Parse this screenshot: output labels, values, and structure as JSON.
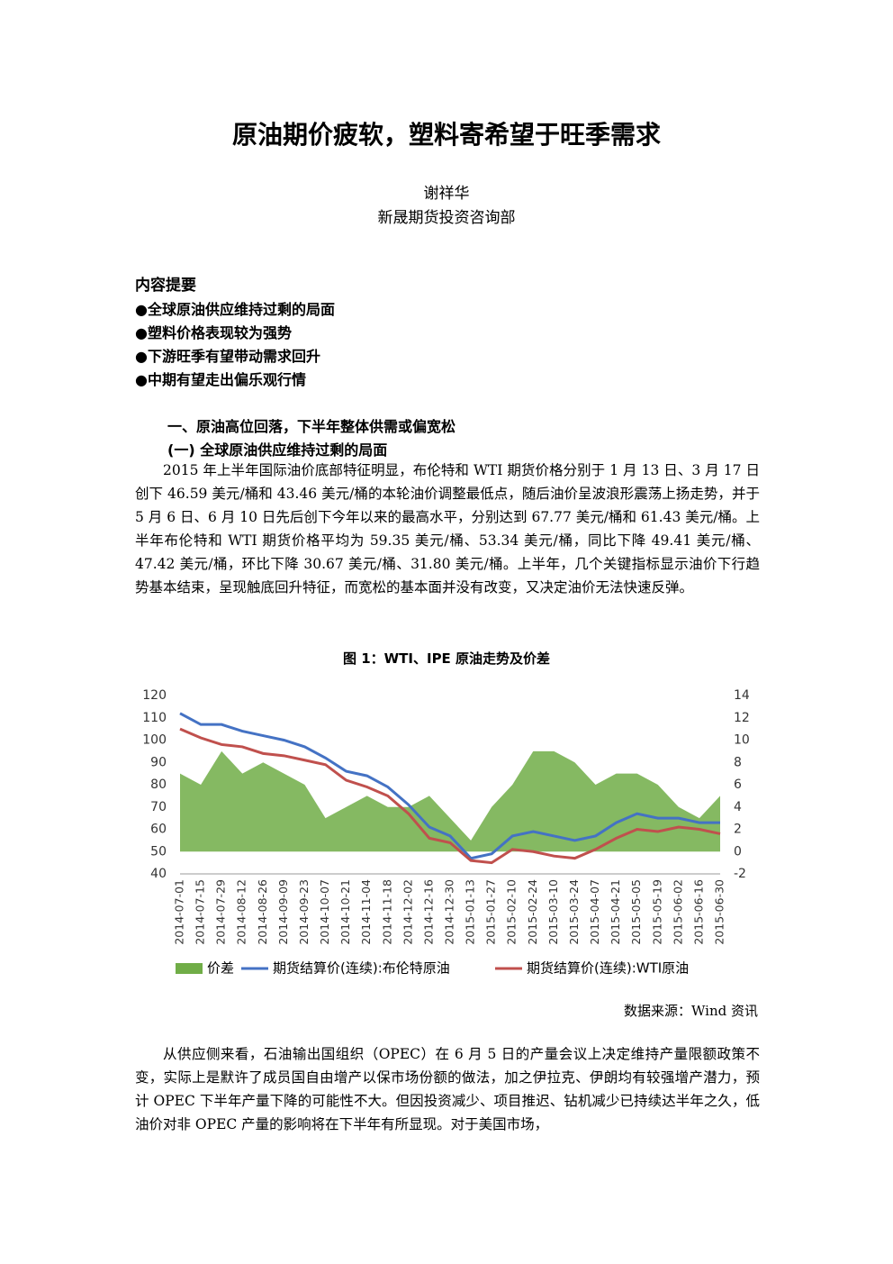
{
  "header": {
    "title": "原油期价疲软，塑料寄希望于旺季需求",
    "author": "谢祥华",
    "organization": "新晟期货投资咨询部"
  },
  "summary": {
    "heading": "内容提要",
    "items": [
      "●全球原油供应维持过剩的局面",
      "●塑料价格表现较为强势",
      "●下游旺季有望带动需求回升",
      "●中期有望走出偏乐观行情"
    ]
  },
  "section": {
    "heading": "一、原油高位回落，下半年整体供需或偏宽松",
    "subheading": "(一) 全球原油供应维持过剩的局面"
  },
  "paragraphs": [
    "2015 年上半年国际油价底部特征明显，布伦特和 WTI 期货价格分别于 1 月 13 日、3 月 17 日创下 46.59 美元/桶和 43.46 美元/桶的本轮油价调整最低点，随后油价呈波浪形震荡上扬走势，并于 5 月 6 日、6 月 10 日先后创下今年以来的最高水平，分别达到 67.77 美元/桶和 61.43 美元/桶。上半年布伦特和 WTI 期货价格平均为 59.35 美元/桶、53.34 美元/桶，同比下降 49.41 美元/桶、47.42 美元/桶，环比下降 30.67 美元/桶、31.80 美元/桶。上半年，几个关键指标显示油价下行趋势基本结束，呈现触底回升特征，而宽松的基本面并没有改变，又决定油价无法快速反弹。",
    "从供应侧来看，石油输出国组织（OPEC）在 6 月 5 日的产量会议上决定维持产量限额政策不变，实际上是默许了成员国自由增产以保市场份额的做法，加之伊拉克、伊朗均有较强增产潜力，预计 OPEC 下半年产量下降的可能性不大。但因投资减少、项目推迟、钻机减少已持续达半年之久，低油价对非 OPEC 产量的影响将在下半年有所显现。对于美国市场，"
  ],
  "figure": {
    "caption": "图 1：WTI、IPE 原油走势及价差",
    "source": "数据来源：Wind 资讯"
  },
  "chart_data": {
    "type": "line",
    "categories": [
      "2014-07-01",
      "2014-07-15",
      "2014-07-29",
      "2014-08-12",
      "2014-08-26",
      "2014-09-09",
      "2014-09-23",
      "2014-10-07",
      "2014-10-21",
      "2014-11-04",
      "2014-11-18",
      "2014-12-02",
      "2014-12-16",
      "2014-12-30",
      "2015-01-13",
      "2015-01-27",
      "2015-02-10",
      "2015-02-24",
      "2015-03-10",
      "2015-03-24",
      "2015-04-07",
      "2015-04-21",
      "2015-05-05",
      "2015-05-19",
      "2015-06-02",
      "2015-06-16",
      "2015-06-30"
    ],
    "series": [
      {
        "name": "价差",
        "color": "#70ad47",
        "style": "area",
        "axis": "y2",
        "values": [
          7,
          6,
          9,
          7,
          8,
          7,
          6,
          3,
          4,
          5,
          4,
          4,
          5,
          3,
          1,
          4,
          6,
          9,
          9,
          8,
          6,
          7,
          7,
          6,
          4,
          3,
          5
        ]
      },
      {
        "name": "期货结算价(连续):布伦特原油",
        "color": "#4472c4",
        "style": "line",
        "values": [
          112,
          107,
          107,
          104,
          102,
          100,
          97,
          92,
          86,
          84,
          79,
          71,
          61,
          57,
          47,
          49,
          57,
          59,
          57,
          55,
          57,
          63,
          67,
          65,
          65,
          63,
          63
        ]
      },
      {
        "name": "期货结算价(连续):WTI原油",
        "color": "#c0504d",
        "style": "line",
        "values": [
          105,
          101,
          98,
          97,
          94,
          93,
          91,
          89,
          82,
          79,
          75,
          67,
          56,
          54,
          46,
          45,
          51,
          50,
          48,
          47,
          51,
          56,
          60,
          59,
          61,
          60,
          58
        ]
      }
    ],
    "ylim": [
      40,
      120
    ],
    "yticks": [
      40,
      50,
      60,
      70,
      80,
      90,
      100,
      110,
      120
    ],
    "y2lim": [
      -2,
      14
    ],
    "y2ticks": [
      -2,
      0,
      2,
      4,
      6,
      8,
      10,
      12,
      14
    ],
    "grid": false,
    "legend": "bottom"
  }
}
